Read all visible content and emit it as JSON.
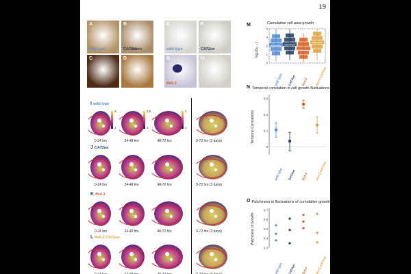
{
  "page_number": "19",
  "photos": [
    {
      "id": "A",
      "caption": "wild type",
      "cap_color": "#5b8fd8",
      "bg": "#b39469"
    },
    {
      "id": "B",
      "caption": "CAT2oe",
      "cap_color": "#1c3a5e",
      "bg": "#ab8e6a"
    },
    {
      "id": "C",
      "caption": "",
      "cap_color": "#fff",
      "bg": "#4d2b17"
    },
    {
      "id": "D",
      "caption": "",
      "cap_color": "#fff",
      "bg": "#a87a42"
    },
    {
      "id": "E",
      "caption": "wild type",
      "cap_color": "#5b8fd8",
      "bg": "#d9d6cf"
    },
    {
      "id": "F",
      "caption": "CAT2oe",
      "cap_color": "#1c3a5e",
      "bg": "#cfccc4"
    },
    {
      "id": "G",
      "caption": "fls4-3",
      "cap_color": "#d85a1c",
      "bg": "#c8c4d8"
    },
    {
      "id": "H",
      "caption": "",
      "cap_color": "#fff",
      "bg": "#d4d0c8"
    }
  ],
  "scalebar_label": "0.5mm",
  "rows": [
    {
      "letter": "I",
      "genotype": "wild type",
      "color": "#4f88d6"
    },
    {
      "letter": "J",
      "genotype": "CAT2oe",
      "color": "#1c3a5e"
    },
    {
      "letter": "K",
      "genotype": "fls4-3",
      "color": "#d85a1c"
    },
    {
      "letter": "L",
      "genotype": "fls4-3 CAT2oe",
      "color": "#e0a13a"
    }
  ],
  "time_captions": [
    "0-24 hrs",
    "24-48 hrs",
    "48-72 hrs",
    "0-72 hrs (3 days)"
  ],
  "colorbar_ticks": {
    "a": [
      "3",
      "1"
    ],
    "b": [
      "2.5",
      "1"
    ],
    "c": [
      "2",
      "1"
    ]
  },
  "panel_M": {
    "letter": "M",
    "title": "Cumulative cell area growth",
    "ylabel": "log₂(G₀₋₁)",
    "chart_data": {
      "type": "box",
      "categories": [
        "wild type",
        "CAT2oe",
        "fls4-3",
        "fls4-3 CAT2oe"
      ],
      "colors": [
        "#4f88d6",
        "#1c3a5e",
        "#d85a1c",
        "#e0a13a"
      ],
      "medians": [
        2.0,
        2.1,
        1.5,
        2.4
      ],
      "q1": [
        1.4,
        1.5,
        1.0,
        1.7
      ],
      "q3": [
        2.6,
        2.8,
        2.1,
        3.0
      ],
      "min": [
        0.2,
        0.3,
        0.1,
        0.3
      ],
      "max": [
        4.0,
        4.0,
        3.5,
        4.0
      ],
      "ylim": [
        0,
        4
      ],
      "yticks": [
        "0",
        "1",
        "2",
        "3",
        "4"
      ]
    }
  },
  "panel_N": {
    "letter": "N",
    "title": "Temporal correlation in cell growth fluctuations",
    "ylabel": "Temporal Correlations",
    "chart_data": {
      "type": "scatter",
      "categories": [
        "wild type",
        "CAT2oe",
        "fls4-3",
        "fls4-3 CAT2oe"
      ],
      "colors": [
        "#4f88d6",
        "#1c3a5e",
        "#d85a1c",
        "#e0a13a"
      ],
      "values": [
        0.21,
        0.07,
        0.53,
        0.27
      ],
      "err_low": [
        0.12,
        -0.05,
        0.48,
        0.17
      ],
      "err_high": [
        0.3,
        0.18,
        0.58,
        0.37
      ],
      "ylim": [
        -0.1,
        0.65
      ],
      "yticks": [
        "0",
        "0.2",
        "0.4",
        "0.6"
      ]
    }
  },
  "panel_O": {
    "letter": "O",
    "title": "Patchiness in fluctuations of cumulative growth",
    "ylabel": "Patchiness of Growth",
    "chart_data": {
      "type": "scatter",
      "categories": [
        "wild type",
        "CAT2oe",
        "fls4-3",
        "fls4-3 CAT2oe"
      ],
      "colors": [
        "#4f88d6",
        "#1c3a5e",
        "#d85a1c",
        "#e0a13a"
      ],
      "series": [
        [
          0.54,
          0.45,
          0.38
        ],
        [
          0.61,
          0.49,
          0.35
        ],
        [
          0.65,
          0.58,
          0.51
        ],
        [
          0.66,
          0.46,
          0.36
        ]
      ],
      "ylim": [
        0.3,
        0.72
      ],
      "yticks": [
        "0.3",
        "0.4",
        "0.5",
        "0.6",
        "0.7"
      ]
    }
  }
}
